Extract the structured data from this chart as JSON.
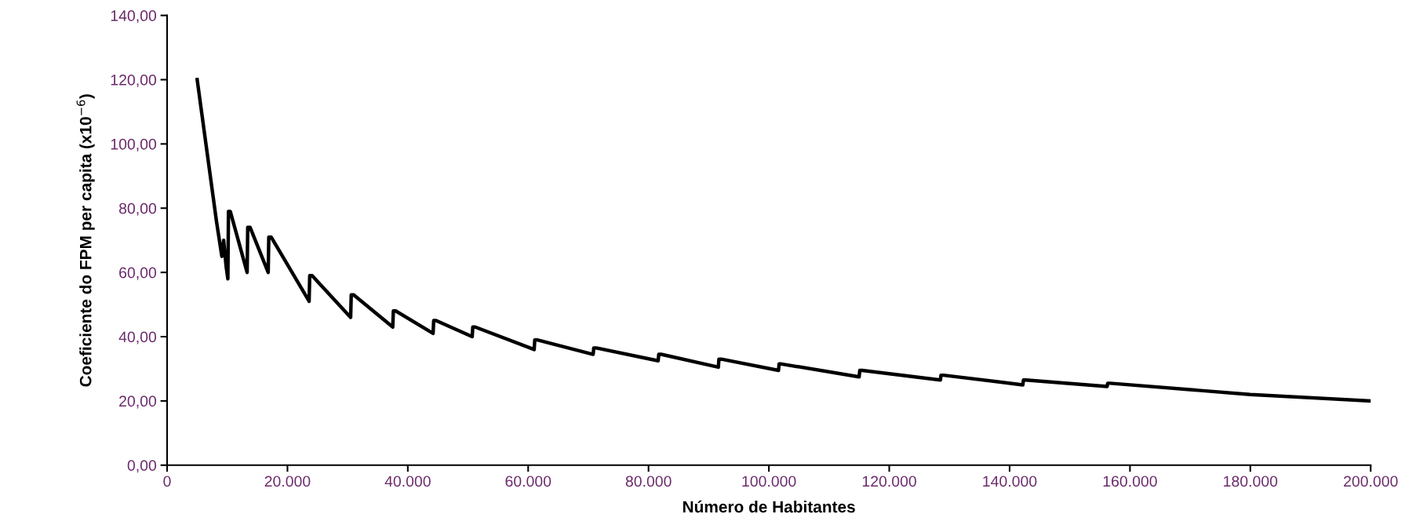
{
  "chart_data": {
    "type": "line",
    "xlabel": "Número de Habitantes",
    "ylabel": "Coeficiente do FPM per capita (x10$^{−6}$)",
    "xlim": [
      0,
      200000
    ],
    "ylim": [
      0,
      140
    ],
    "xticks": [
      {
        "value": 0,
        "label": "0"
      },
      {
        "value": 20000,
        "label": "20.000"
      },
      {
        "value": 40000,
        "label": "40.000"
      },
      {
        "value": 60000,
        "label": "60.000"
      },
      {
        "value": 80000,
        "label": "80.000"
      },
      {
        "value": 100000,
        "label": "100.000"
      },
      {
        "value": 120000,
        "label": "120.000"
      },
      {
        "value": 140000,
        "label": "140.000"
      },
      {
        "value": 160000,
        "label": "160.000"
      },
      {
        "value": 180000,
        "label": "180.000"
      },
      {
        "value": 200000,
        "label": "200.000"
      }
    ],
    "yticks": [
      {
        "value": 0,
        "label": "0,00"
      },
      {
        "value": 20,
        "label": "20,00"
      },
      {
        "value": 40,
        "label": "40,00"
      },
      {
        "value": 60,
        "label": "60,00"
      },
      {
        "value": 80,
        "label": "80,00"
      },
      {
        "value": 100,
        "label": "100,00"
      },
      {
        "value": 120,
        "label": "120,00"
      },
      {
        "value": 140,
        "label": "140,00"
      }
    ],
    "grid": false,
    "marker": "none",
    "line_style": "solid",
    "series": [
      {
        "color": "#000000",
        "x": [
          5000,
          8200,
          9100,
          9400,
          9800,
          10100,
          10200,
          10500,
          13300,
          13400,
          13800,
          16800,
          16900,
          17300,
          23600,
          23700,
          24100,
          30500,
          30600,
          31000,
          37500,
          37600,
          38000,
          44200,
          44300,
          44700,
          50700,
          50800,
          51200,
          61000,
          61100,
          61500,
          70800,
          70900,
          71300,
          81600,
          81700,
          82100,
          91600,
          91700,
          92100,
          101600,
          101700,
          102100,
          115000,
          115100,
          115500,
          128500,
          128600,
          129000,
          142200,
          142300,
          142700,
          156200,
          156300,
          156700,
          180000,
          200000
        ],
        "values": [
          120,
          76,
          65,
          70,
          62,
          58,
          79,
          79,
          60,
          74,
          74,
          60,
          71,
          71,
          51,
          59,
          59,
          46,
          53,
          53,
          43,
          48,
          48,
          41,
          45,
          45,
          40,
          43,
          43,
          36,
          39,
          39,
          34.5,
          36.5,
          36.5,
          32.5,
          34.5,
          34.5,
          30.5,
          33,
          33,
          29.5,
          31.5,
          31.5,
          27.5,
          29.5,
          29.5,
          26.5,
          28,
          28,
          25,
          26.5,
          26.5,
          24.5,
          25.5,
          25.5,
          22,
          20
        ]
      }
    ]
  }
}
